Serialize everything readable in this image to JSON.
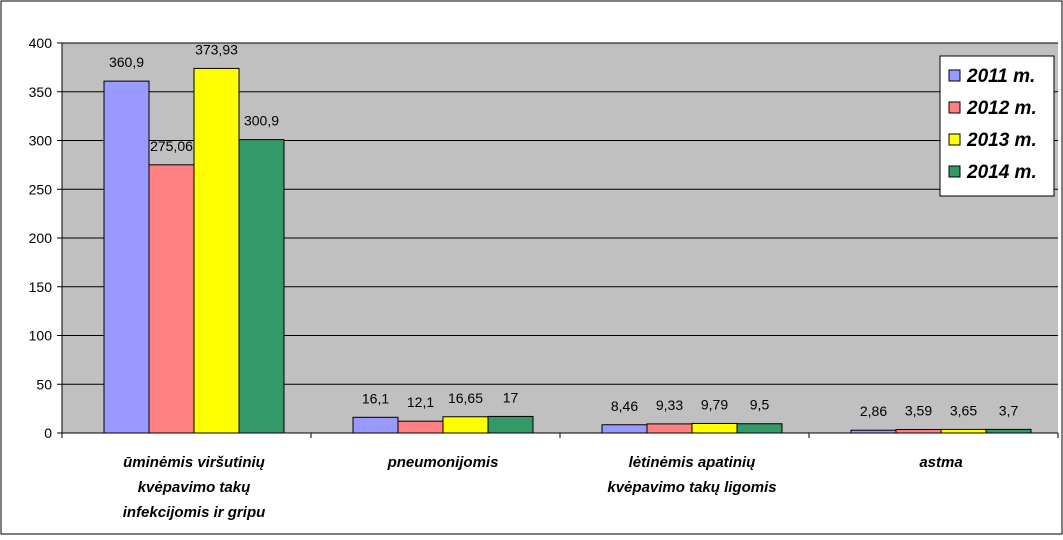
{
  "chart_data": {
    "type": "bar",
    "title": "",
    "xlabel": "",
    "ylabel": "",
    "ylim": [
      0,
      400
    ],
    "yticks": [
      0,
      50,
      100,
      150,
      200,
      250,
      300,
      350,
      400
    ],
    "grid": true,
    "legend_position": "top-right",
    "categories": [
      [
        "ūminėmis viršutinių",
        "kvėpavimo takų",
        "infekcijomis ir gripu"
      ],
      [
        "pneumonijomis"
      ],
      [
        "lėtinėmis apatinių",
        "kvėpavimo takų ligomis"
      ],
      [
        "astma"
      ]
    ],
    "series": [
      {
        "name": "2011 m.",
        "color": "#9999ff",
        "values": [
          360.9,
          16.1,
          8.46,
          2.86
        ],
        "labels": [
          "360,9",
          "16,1",
          "8,46",
          "2,86"
        ]
      },
      {
        "name": "2012 m.",
        "color": "#ff8080",
        "values": [
          275.06,
          12.1,
          9.33,
          3.59
        ],
        "labels": [
          "275,06",
          "12,1",
          "9,33",
          "3,59"
        ]
      },
      {
        "name": "2013 m.",
        "color": "#ffff00",
        "values": [
          373.93,
          16.65,
          9.79,
          3.65
        ],
        "labels": [
          "373,93",
          "16,65",
          "9,79",
          "3,65"
        ]
      },
      {
        "name": "2014 m.",
        "color": "#339966",
        "values": [
          300.9,
          17,
          9.5,
          3.7
        ],
        "labels": [
          "300,9",
          "17",
          "9,5",
          "3,7"
        ]
      }
    ],
    "plot_background": "#c0c0c0"
  }
}
